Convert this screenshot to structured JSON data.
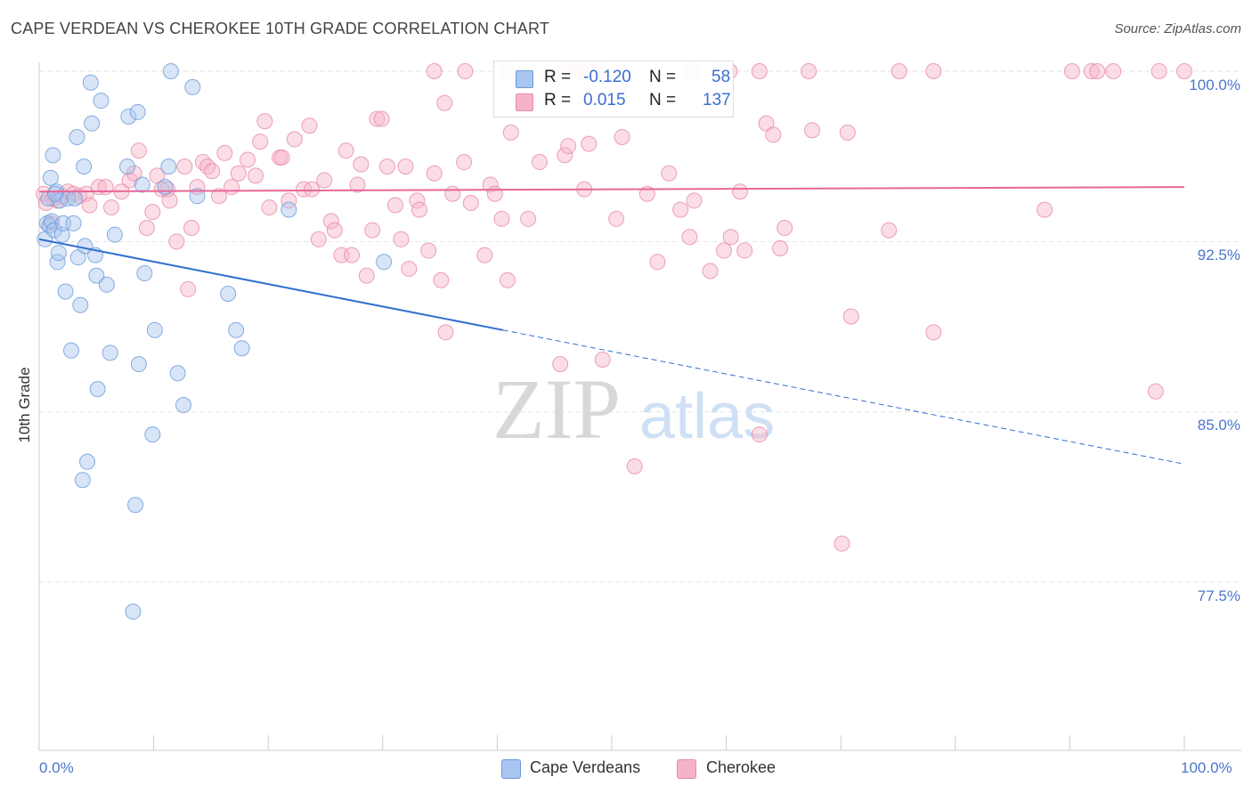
{
  "title": "CAPE VERDEAN VS CHEROKEE 10TH GRADE CORRELATION CHART",
  "source": "Source: ZipAtlas.com",
  "watermark": {
    "zip": "ZIP",
    "atlas": "atlas"
  },
  "legend": {
    "rows": [
      {
        "r_label": "R =",
        "r_value": "-0.120",
        "n_label": "N =",
        "n_value": "58",
        "color": "#a8c6f0"
      },
      {
        "r_label": "R =",
        "r_value": "0.015",
        "n_label": "N =",
        "n_value": "137",
        "color": "#f6b3c8"
      }
    ]
  },
  "bottom_legend": [
    {
      "label": "Cape Verdeans",
      "color": "#a8c6f0"
    },
    {
      "label": "Cherokee",
      "color": "#f6b3c8"
    }
  ],
  "colors": {
    "blue_fill": "#a8c6f0",
    "blue_stroke": "#6a9ad8",
    "blue_line": "#2f6fd0",
    "pink_fill": "#f6b3c8",
    "pink_stroke": "#e78aa8",
    "pink_line": "#e8679a",
    "tick_text": "#4a76c9"
  },
  "chart_data": {
    "type": "scatter",
    "title": "CAPE VERDEAN VS CHEROKEE 10TH GRADE CORRELATION CHART",
    "xlabel": "",
    "ylabel": "10th Grade",
    "xlim": [
      0,
      100
    ],
    "ylim": [
      70.5,
      101
    ],
    "x_tick_labels": [
      "0.0%",
      "100.0%"
    ],
    "y_ticks": [
      77.5,
      85.0,
      92.5,
      100.0
    ],
    "y_tick_labels": [
      "77.5%",
      "85.0%",
      "92.5%",
      "100.0%"
    ],
    "grid": "horizontal dashed",
    "series": [
      {
        "name": "Cape Verdeans",
        "r": -0.12,
        "n": 58,
        "trend": {
          "x0": 0,
          "y0": 92.6,
          "x1": 40.5,
          "y1": 88.6,
          "dashed_to_x": 100,
          "dashed_to_y": 82.7
        },
        "points": [
          [
            0.5,
            92.6
          ],
          [
            0.7,
            93.3
          ],
          [
            0.8,
            94.4
          ],
          [
            0.9,
            93.2
          ],
          [
            1.0,
            95.3
          ],
          [
            1.1,
            93.4
          ],
          [
            1.2,
            96.3
          ],
          [
            1.3,
            93.0
          ],
          [
            1.5,
            94.7
          ],
          [
            1.6,
            91.6
          ],
          [
            1.7,
            92.0
          ],
          [
            1.8,
            94.3
          ],
          [
            2.0,
            92.8
          ],
          [
            2.1,
            93.3
          ],
          [
            2.3,
            90.3
          ],
          [
            2.5,
            94.4
          ],
          [
            2.8,
            87.7
          ],
          [
            3.0,
            93.3
          ],
          [
            3.1,
            94.4
          ],
          [
            3.3,
            97.1
          ],
          [
            3.4,
            91.8
          ],
          [
            3.6,
            89.7
          ],
          [
            3.9,
            95.8
          ],
          [
            4.0,
            92.3
          ],
          [
            4.2,
            82.8
          ],
          [
            4.5,
            99.5
          ],
          [
            4.6,
            97.7
          ],
          [
            4.9,
            91.9
          ],
          [
            5.0,
            91.0
          ],
          [
            5.1,
            86.0
          ],
          [
            5.4,
            98.7
          ],
          [
            5.9,
            90.6
          ],
          [
            6.2,
            87.6
          ],
          [
            6.6,
            92.8
          ],
          [
            7.7,
            95.8
          ],
          [
            7.8,
            98.0
          ],
          [
            8.2,
            76.2
          ],
          [
            8.4,
            80.9
          ],
          [
            8.6,
            98.2
          ],
          [
            8.7,
            87.1
          ],
          [
            9.0,
            95.0
          ],
          [
            9.2,
            91.1
          ],
          [
            9.9,
            84.0
          ],
          [
            10.1,
            88.6
          ],
          [
            11.0,
            94.9
          ],
          [
            11.3,
            95.8
          ],
          [
            11.5,
            100.0
          ],
          [
            12.1,
            86.7
          ],
          [
            12.6,
            85.3
          ],
          [
            13.4,
            99.3
          ],
          [
            13.8,
            94.5
          ],
          [
            16.5,
            90.2
          ],
          [
            17.2,
            88.6
          ],
          [
            17.7,
            87.8
          ],
          [
            21.8,
            93.9
          ],
          [
            30.1,
            91.6
          ],
          [
            3.8,
            82.0
          ],
          [
            1.4,
            94.6
          ]
        ]
      },
      {
        "name": "Cherokee",
        "r": 0.015,
        "n": 137,
        "trend": {
          "x0": 0,
          "y0": 94.7,
          "x1": 100,
          "y1": 94.9
        },
        "points": [
          [
            0.4,
            94.6
          ],
          [
            0.6,
            94.2
          ],
          [
            1.0,
            93.3
          ],
          [
            1.2,
            94.4
          ],
          [
            1.6,
            94.3
          ],
          [
            2.0,
            94.5
          ],
          [
            2.5,
            94.7
          ],
          [
            3.0,
            94.6
          ],
          [
            3.5,
            94.5
          ],
          [
            4.1,
            94.6
          ],
          [
            4.4,
            94.1
          ],
          [
            5.2,
            94.9
          ],
          [
            5.8,
            94.9
          ],
          [
            6.3,
            94.0
          ],
          [
            7.2,
            94.7
          ],
          [
            7.9,
            95.2
          ],
          [
            8.3,
            95.5
          ],
          [
            8.7,
            96.5
          ],
          [
            9.4,
            93.1
          ],
          [
            9.9,
            93.8
          ],
          [
            10.3,
            95.4
          ],
          [
            10.7,
            94.8
          ],
          [
            11.2,
            94.8
          ],
          [
            11.4,
            94.3
          ],
          [
            12.0,
            92.5
          ],
          [
            12.7,
            95.8
          ],
          [
            13.0,
            90.4
          ],
          [
            13.3,
            93.1
          ],
          [
            13.8,
            94.9
          ],
          [
            14.3,
            96.0
          ],
          [
            14.7,
            95.8
          ],
          [
            15.1,
            95.6
          ],
          [
            15.7,
            94.5
          ],
          [
            16.2,
            96.4
          ],
          [
            16.8,
            94.9
          ],
          [
            17.4,
            95.5
          ],
          [
            18.2,
            96.1
          ],
          [
            18.9,
            95.4
          ],
          [
            19.3,
            96.9
          ],
          [
            19.7,
            97.8
          ],
          [
            20.1,
            94.0
          ],
          [
            21.0,
            96.2
          ],
          [
            21.2,
            96.2
          ],
          [
            21.8,
            94.3
          ],
          [
            22.3,
            97.0
          ],
          [
            23.1,
            94.8
          ],
          [
            23.6,
            97.6
          ],
          [
            23.8,
            94.8
          ],
          [
            24.4,
            92.6
          ],
          [
            24.9,
            95.2
          ],
          [
            25.5,
            93.4
          ],
          [
            25.8,
            93.0
          ],
          [
            26.4,
            91.9
          ],
          [
            26.8,
            96.5
          ],
          [
            27.3,
            91.9
          ],
          [
            27.8,
            95.0
          ],
          [
            28.1,
            95.9
          ],
          [
            28.6,
            91.0
          ],
          [
            29.1,
            93.0
          ],
          [
            29.5,
            97.9
          ],
          [
            29.9,
            97.9
          ],
          [
            30.4,
            95.8
          ],
          [
            31.1,
            94.1
          ],
          [
            31.6,
            92.6
          ],
          [
            32.0,
            95.8
          ],
          [
            32.3,
            91.3
          ],
          [
            33.0,
            94.3
          ],
          [
            33.2,
            93.9
          ],
          [
            34.0,
            92.1
          ],
          [
            34.5,
            95.5
          ],
          [
            35.1,
            90.8
          ],
          [
            35.4,
            98.6
          ],
          [
            35.5,
            88.5
          ],
          [
            36.1,
            94.6
          ],
          [
            37.1,
            96.0
          ],
          [
            37.7,
            94.2
          ],
          [
            38.9,
            91.9
          ],
          [
            39.4,
            95.0
          ],
          [
            39.8,
            94.6
          ],
          [
            40.4,
            93.5
          ],
          [
            40.9,
            90.8
          ],
          [
            41.2,
            97.3
          ],
          [
            42.7,
            93.5
          ],
          [
            43.7,
            96.0
          ],
          [
            45.5,
            87.1
          ],
          [
            45.9,
            96.3
          ],
          [
            46.2,
            96.7
          ],
          [
            47.6,
            94.8
          ],
          [
            48.0,
            96.8
          ],
          [
            49.2,
            87.3
          ],
          [
            50.4,
            93.5
          ],
          [
            50.9,
            97.1
          ],
          [
            52.0,
            82.6
          ],
          [
            53.1,
            94.6
          ],
          [
            54.0,
            91.6
          ],
          [
            55.0,
            95.5
          ],
          [
            56.0,
            93.9
          ],
          [
            56.8,
            92.7
          ],
          [
            57.2,
            94.3
          ],
          [
            58.6,
            91.2
          ],
          [
            59.8,
            92.1
          ],
          [
            60.4,
            92.7
          ],
          [
            61.2,
            94.7
          ],
          [
            61.6,
            92.1
          ],
          [
            62.9,
            84.0
          ],
          [
            63.5,
            97.7
          ],
          [
            64.1,
            97.2
          ],
          [
            64.7,
            92.2
          ],
          [
            65.1,
            93.1
          ],
          [
            67.5,
            97.4
          ],
          [
            70.1,
            79.2
          ],
          [
            70.6,
            97.3
          ],
          [
            70.9,
            89.2
          ],
          [
            74.2,
            93.0
          ],
          [
            78.1,
            88.5
          ],
          [
            87.8,
            93.9
          ],
          [
            97.5,
            85.9
          ],
          [
            34.5,
            100.0
          ],
          [
            37.2,
            100.0
          ],
          [
            46.0,
            100.0
          ],
          [
            47.3,
            100.0
          ],
          [
            47.9,
            100.0
          ],
          [
            48.9,
            100.0
          ],
          [
            57.0,
            100.0
          ],
          [
            59.5,
            100.0
          ],
          [
            60.3,
            100.0
          ],
          [
            62.9,
            100.0
          ],
          [
            67.2,
            100.0
          ],
          [
            75.1,
            100.0
          ],
          [
            78.1,
            100.0
          ],
          [
            90.2,
            100.0
          ],
          [
            91.9,
            100.0
          ],
          [
            92.4,
            100.0
          ],
          [
            93.8,
            100.0
          ],
          [
            97.8,
            100.0
          ],
          [
            100.0,
            100.0
          ],
          [
            40.8,
            100.0
          ]
        ]
      }
    ]
  }
}
